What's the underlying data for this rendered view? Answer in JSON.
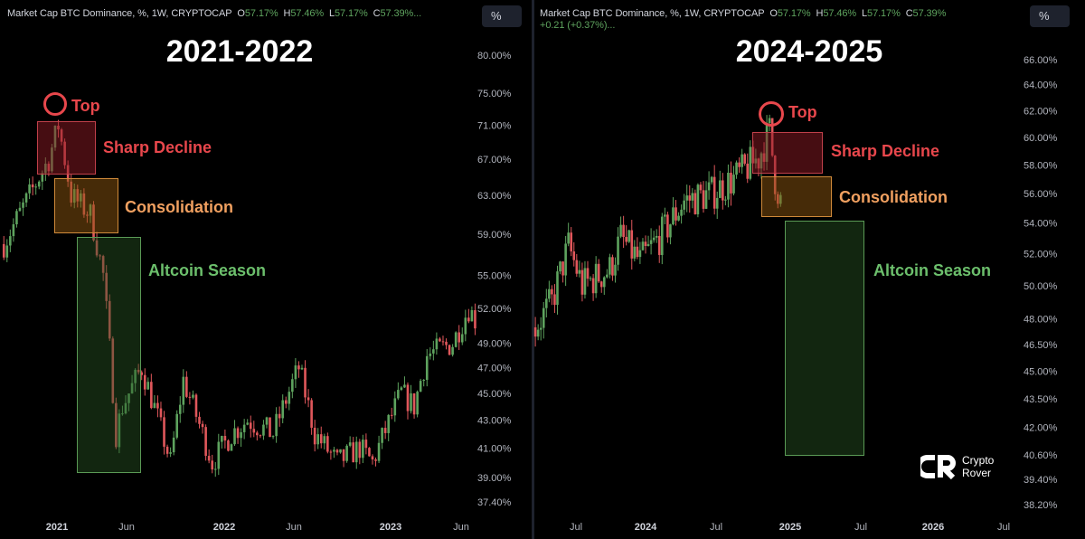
{
  "colors": {
    "up": "#5ea35e",
    "down": "#e0575b",
    "top": "#e8474c",
    "sharp": "#e8474c",
    "consolidation": "#f0a060",
    "altcoin": "#6cbf6c"
  },
  "chart_data": [
    {
      "type": "candlestick",
      "title": "2021-2022",
      "interval": "1W",
      "scale": "log",
      "header": {
        "name": "Market Cap BTC Dominance, %, 1W, CRYPTOCAP",
        "o": "57.17%",
        "h": "57.46%",
        "l": "57.17%",
        "c": "57.39%..."
      },
      "ylim": [
        37.4,
        80
      ],
      "yticks": [
        "80.00%",
        "75.00%",
        "71.00%",
        "67.00%",
        "63.00%",
        "59.00%",
        "55.00%",
        "52.00%",
        "49.00%",
        "47.00%",
        "45.00%",
        "43.00%",
        "41.00%",
        "39.00%",
        "37.40%"
      ],
      "xticks": [
        {
          "label": "2021",
          "bold": true
        },
        {
          "label": "Jun"
        },
        {
          "label": "2022",
          "bold": true
        },
        {
          "label": "Jun"
        },
        {
          "label": "2023",
          "bold": true
        },
        {
          "label": "Jun"
        }
      ],
      "close_keypoints": [
        [
          "2020-09-07",
          58
        ],
        [
          "2020-11-02",
          63
        ],
        [
          "2020-12-14",
          67
        ],
        [
          "2021-01-04",
          71
        ],
        [
          "2021-02-01",
          63
        ],
        [
          "2021-03-15",
          61
        ],
        [
          "2021-04-12",
          55
        ],
        [
          "2021-05-10",
          42
        ],
        [
          "2021-05-24",
          44
        ],
        [
          "2021-07-05",
          47
        ],
        [
          "2021-09-06",
          40
        ],
        [
          "2021-10-04",
          46
        ],
        [
          "2021-12-06",
          40
        ],
        [
          "2022-01-17",
          42
        ],
        [
          "2022-02-21",
          43
        ],
        [
          "2022-04-18",
          42
        ],
        [
          "2022-06-13",
          47
        ],
        [
          "2022-07-18",
          42
        ],
        [
          "2022-09-05",
          40
        ],
        [
          "2022-10-24",
          41
        ],
        [
          "2022-11-21",
          40
        ],
        [
          "2023-01-23",
          45
        ],
        [
          "2023-02-20",
          44
        ],
        [
          "2023-03-20",
          48
        ],
        [
          "2023-05-15",
          49
        ],
        [
          "2023-06-19",
          52
        ],
        [
          "2023-07-03",
          51
        ]
      ],
      "annotations": [
        {
          "label": "Top"
        },
        {
          "label": "Sharp Decline"
        },
        {
          "label": "Consolidation"
        },
        {
          "label": "Altcoin Season"
        }
      ]
    },
    {
      "type": "candlestick",
      "title": "2024-2025",
      "interval": "1W",
      "scale": "log",
      "header": {
        "name": "Market Cap BTC Dominance, %, 1W, CRYPTOCAP",
        "o": "57.17%",
        "h": "57.46%",
        "l": "57.17%",
        "c": "57.39%",
        "change": "+0.21 (+0.37%)..."
      },
      "ylim": [
        38.2,
        66
      ],
      "yticks": [
        "66.00%",
        "64.00%",
        "62.00%",
        "60.00%",
        "58.00%",
        "56.00%",
        "54.00%",
        "52.00%",
        "50.00%",
        "48.00%",
        "46.50%",
        "45.00%",
        "43.50%",
        "42.00%",
        "40.60%",
        "39.40%",
        "38.20%"
      ],
      "xticks": [
        {
          "label": "Jul"
        },
        {
          "label": "2024",
          "bold": true
        },
        {
          "label": "Jul"
        },
        {
          "label": "2025",
          "bold": true
        },
        {
          "label": "Jul"
        },
        {
          "label": "2026",
          "bold": true
        },
        {
          "label": "Jul"
        }
      ],
      "close_keypoints": [
        [
          "2023-03-27",
          47.5
        ],
        [
          "2023-05-08",
          49
        ],
        [
          "2023-06-19",
          52.5
        ],
        [
          "2023-07-24",
          50
        ],
        [
          "2023-10-02",
          51
        ],
        [
          "2023-10-30",
          53
        ],
        [
          "2023-12-18",
          51.5
        ],
        [
          "2024-02-19",
          53.5
        ],
        [
          "2024-04-08",
          55.5
        ],
        [
          "2024-06-17",
          56
        ],
        [
          "2024-08-12",
          57
        ],
        [
          "2024-10-14",
          58.5
        ],
        [
          "2024-11-11",
          60.5
        ],
        [
          "2024-11-25",
          57
        ],
        [
          "2024-12-09",
          55.5
        ]
      ],
      "annotations": [
        {
          "label": "Top"
        },
        {
          "label": "Sharp Decline"
        },
        {
          "label": "Consolidation"
        },
        {
          "label": "Altcoin Season"
        }
      ]
    }
  ],
  "ui": {
    "pct_button": "%",
    "logo_line1": "Crypto",
    "logo_line2": "Rover"
  }
}
